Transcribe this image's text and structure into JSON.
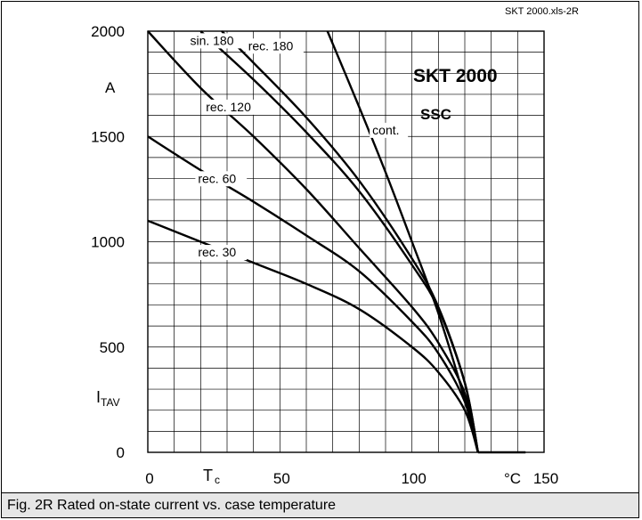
{
  "source_tag": "SKT 2000.xls-2R",
  "device": "SKT 2000",
  "cooling": "SSC",
  "caption": "Fig. 2R Rated on-state current vs. case temperature",
  "chart_data": {
    "type": "line",
    "title": "SKT 2000",
    "subtitle": "SSC",
    "xlabel_symbol": "T",
    "xlabel_sub": "c",
    "xunit": "°C",
    "ylabel_symbol": "I",
    "ylabel_sub": "TAV",
    "yunit": "A",
    "xlim": [
      0,
      150
    ],
    "ylim": [
      0,
      2000
    ],
    "x_ticks": [
      "0",
      "50",
      "100",
      "150"
    ],
    "y_ticks": [
      "2000",
      "1500",
      "1000",
      "500",
      "0"
    ],
    "grid": true,
    "series": [
      {
        "name": "cont.",
        "x": [
          68,
          80,
          90,
          100,
          110,
          120,
          125
        ],
        "y": [
          2000,
          1640,
          1330,
          1000,
          660,
          250,
          0
        ]
      },
      {
        "name": "rec. 180",
        "x": [
          28,
          40,
          60,
          80,
          100,
          110,
          120,
          125
        ],
        "y": [
          2000,
          1850,
          1590,
          1290,
          920,
          690,
          330,
          0
        ]
      },
      {
        "name": "sin. 180",
        "x": [
          20,
          40,
          60,
          80,
          100,
          110,
          120,
          125
        ],
        "y": [
          2000,
          1770,
          1520,
          1240,
          890,
          680,
          330,
          0
        ]
      },
      {
        "name": "rec. 120",
        "x": [
          0,
          20,
          40,
          60,
          80,
          100,
          110,
          120,
          125
        ],
        "y": [
          2000,
          1730,
          1500,
          1250,
          970,
          690,
          520,
          280,
          0
        ]
      },
      {
        "name": "rec. 60",
        "x": [
          0,
          20,
          40,
          60,
          80,
          100,
          110,
          120,
          125
        ],
        "y": [
          1500,
          1340,
          1190,
          1030,
          860,
          620,
          470,
          240,
          0
        ]
      },
      {
        "name": "rec. 30",
        "x": [
          0,
          20,
          40,
          60,
          80,
          100,
          110,
          120,
          125
        ],
        "y": [
          1100,
          1000,
          900,
          800,
          680,
          500,
          380,
          200,
          0
        ]
      },
      {
        "name": "",
        "x": [
          125,
          143
        ],
        "y": [
          0,
          0
        ]
      }
    ],
    "label_pos": {
      "cont.": [
        85,
        1510
      ],
      "rec. 180": [
        38,
        1910
      ],
      "sin. 180": [
        16,
        1935
      ],
      "rec. 120": [
        22,
        1620
      ],
      "rec. 60": [
        19,
        1280
      ],
      "rec. 30": [
        19,
        930
      ]
    }
  }
}
